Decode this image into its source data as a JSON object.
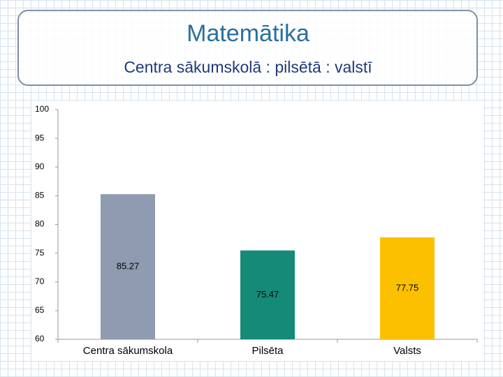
{
  "chart_data": {
    "type": "bar",
    "title": "Matemātika",
    "subtitle": "Centra sākumskolā : pilsētā : valstī",
    "categories": [
      "Centra sākumskola",
      "Pilsēta",
      "Valsts"
    ],
    "values": [
      85.27,
      75.47,
      77.75
    ],
    "colors": [
      "#8e9bb0",
      "#158a78",
      "#fcc000"
    ],
    "ylim": [
      60,
      100
    ],
    "yticks": [
      60,
      65,
      70,
      75,
      80,
      85,
      90,
      95,
      100
    ],
    "grid": false
  }
}
